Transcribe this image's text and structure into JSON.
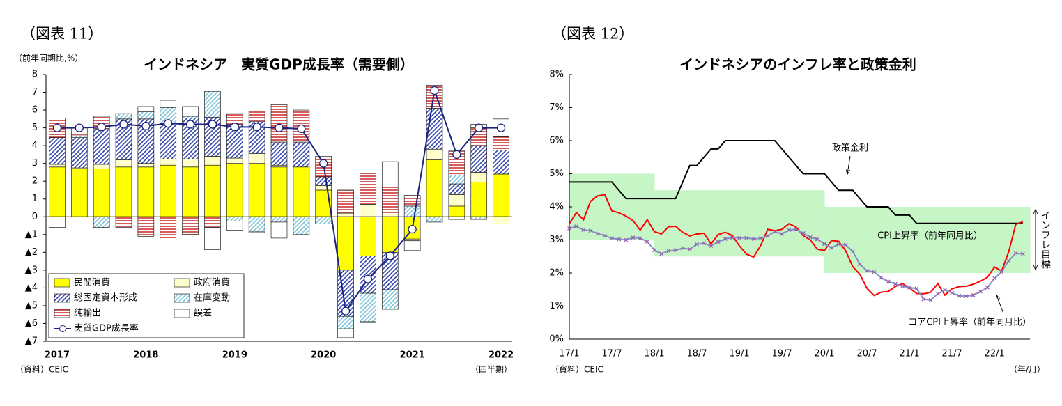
{
  "chart_data": [
    {
      "type": "bar",
      "stacked": true,
      "figure_label": "（図表 11）",
      "title": "インドネシア　実質GDP成長率（需要側）",
      "y_label": "（前年同期比,%）",
      "x_label": "（四半期）",
      "source": "（資料）CEIC",
      "grid": false,
      "categories": [
        "2017",
        null,
        null,
        null,
        "2018",
        null,
        null,
        null,
        "2019",
        null,
        null,
        null,
        "2020",
        null,
        null,
        null,
        "2021",
        null,
        null,
        null,
        "2022"
      ],
      "ylim": [
        -7,
        8
      ],
      "yticks": [
        8,
        7,
        6,
        5,
        4,
        3,
        2,
        1,
        0,
        {
          "value": -1,
          "label": "▲1"
        },
        {
          "value": -2,
          "label": "▲2"
        },
        {
          "value": -3,
          "label": "▲3"
        },
        {
          "value": -4,
          "label": "▲4"
        },
        {
          "value": -5,
          "label": "▲5"
        },
        {
          "value": -6,
          "label": "▲6"
        },
        {
          "value": -7,
          "label": "▲7"
        }
      ],
      "series": [
        {
          "name": "民間消費",
          "color": "#ffff00",
          "values": [
            2.8,
            2.7,
            2.7,
            2.8,
            2.8,
            2.9,
            2.8,
            2.9,
            3.0,
            3.0,
            2.8,
            2.8,
            1.5,
            -3.0,
            -2.2,
            -2.0,
            -1.25,
            3.2,
            0.6,
            1.95,
            2.4
          ]
        },
        {
          "name": "政府消費",
          "color": "#ffffcc",
          "values": [
            0.15,
            0.05,
            0.25,
            0.4,
            0.2,
            0.35,
            0.45,
            0.5,
            0.3,
            0.55,
            0.1,
            0.0,
            0.25,
            0.2,
            0.7,
            0.15,
            -0.1,
            0.6,
            0.65,
            0.55,
            -0.4
          ]
        },
        {
          "name": "総固定資本形成",
          "color": "#3344aa",
          "pattern": "diagonal",
          "values": [
            1.5,
            1.7,
            2.0,
            2.3,
            2.5,
            2.0,
            2.3,
            2.2,
            1.9,
            1.8,
            1.3,
            1.4,
            0.5,
            -2.6,
            -2.1,
            -2.1,
            0.0,
            2.3,
            0.6,
            1.5,
            1.35
          ]
        },
        {
          "name": "在庫変動",
          "color": "#7cc4dc",
          "pattern": "diagonal",
          "values": [
            0.0,
            0.1,
            -0.6,
            0.3,
            0.4,
            0.9,
            0.1,
            1.45,
            -0.25,
            -0.85,
            -0.3,
            -1.0,
            -0.4,
            -0.7,
            -1.6,
            -1.1,
            0.6,
            -0.3,
            0.5,
            -0.15,
            0.0
          ]
        },
        {
          "name": "純輸出",
          "color": "#cc3333",
          "pattern": "horizontal",
          "values": [
            1.1,
            0.1,
            0.7,
            -0.6,
            -1.1,
            -1.3,
            -1.0,
            -0.6,
            0.6,
            0.6,
            2.1,
            1.8,
            1.0,
            1.3,
            1.75,
            1.65,
            0.6,
            1.3,
            1.35,
            1.0,
            0.75
          ]
        },
        {
          "name": "誤差",
          "color": "#ffffff",
          "values": [
            -0.6,
            0.35,
            0.0,
            0.0,
            0.3,
            0.4,
            0.55,
            -1.25,
            -0.5,
            -0.05,
            -0.9,
            0.0,
            0.15,
            -0.5,
            -0.05,
            1.3,
            -0.55,
            0.0,
            -0.15,
            0.2,
            1.0
          ]
        },
        {
          "name": "実質GDP成長率",
          "type": "line",
          "color": "#1a237e",
          "values": [
            5.0,
            5.0,
            5.05,
            5.2,
            5.1,
            5.25,
            5.2,
            5.2,
            5.05,
            5.05,
            5.0,
            4.95,
            3.0,
            -5.3,
            -3.5,
            -2.2,
            -0.7,
            7.1,
            3.5,
            5.0,
            5.0
          ]
        }
      ]
    },
    {
      "type": "line",
      "figure_label": "（図表 12）",
      "title": "インドネシアのインフレ率と政策金利",
      "x_label": "（年/月）",
      "source": "（資料）CEIC",
      "grid": false,
      "categories": [
        "17/1",
        null,
        null,
        null,
        null,
        null,
        "17/7",
        null,
        null,
        null,
        null,
        null,
        "18/1",
        null,
        null,
        null,
        null,
        null,
        "18/7",
        null,
        null,
        null,
        null,
        null,
        "19/1",
        null,
        null,
        null,
        null,
        null,
        "19/7",
        null,
        null,
        null,
        null,
        null,
        "20/1",
        null,
        null,
        null,
        null,
        null,
        "20/7",
        null,
        null,
        null,
        null,
        null,
        "21/1",
        null,
        null,
        null,
        null,
        null,
        "21/7",
        null,
        null,
        null,
        null,
        null,
        "22/1",
        null,
        null,
        null,
        null
      ],
      "ylim": [
        0,
        8
      ],
      "yticks": [
        {
          "value": 0,
          "label": "0%"
        },
        {
          "value": 1,
          "label": "1%"
        },
        {
          "value": 2,
          "label": "2%"
        },
        {
          "value": 3,
          "label": "3%"
        },
        {
          "value": 4,
          "label": "4%"
        },
        {
          "value": 5,
          "label": "5%"
        },
        {
          "value": 6,
          "label": "6%"
        },
        {
          "value": 7,
          "label": "7%"
        },
        {
          "value": 8,
          "label": "8%"
        }
      ],
      "target_band": {
        "name": "インフレ目標",
        "color": "#c6f5c6",
        "upper": [
          5,
          5,
          5,
          5,
          5,
          5,
          5,
          5,
          5,
          5,
          5,
          5,
          4.5,
          4.5,
          4.5,
          4.5,
          4.5,
          4.5,
          4.5,
          4.5,
          4.5,
          4.5,
          4.5,
          4.5,
          4.5,
          4.5,
          4.5,
          4.5,
          4.5,
          4.5,
          4.5,
          4.5,
          4.5,
          4.5,
          4.5,
          4.5,
          4,
          4,
          4,
          4,
          4,
          4,
          4,
          4,
          4,
          4,
          4,
          4,
          4,
          4,
          4,
          4,
          4,
          4,
          4,
          4,
          4,
          4,
          4,
          4,
          4,
          4,
          4,
          4,
          4
        ],
        "lower": [
          3,
          3,
          3,
          3,
          3,
          3,
          3,
          3,
          3,
          3,
          3,
          3,
          2.5,
          2.5,
          2.5,
          2.5,
          2.5,
          2.5,
          2.5,
          2.5,
          2.5,
          2.5,
          2.5,
          2.5,
          2.5,
          2.5,
          2.5,
          2.5,
          2.5,
          2.5,
          2.5,
          2.5,
          2.5,
          2.5,
          2.5,
          2.5,
          2,
          2,
          2,
          2,
          2,
          2,
          2,
          2,
          2,
          2,
          2,
          2,
          2,
          2,
          2,
          2,
          2,
          2,
          2,
          2,
          2,
          2,
          2,
          2,
          2,
          2,
          2,
          2,
          2
        ]
      },
      "series": [
        {
          "name": "政策金利",
          "color": "#000000",
          "values": [
            4.75,
            4.75,
            4.75,
            4.75,
            4.75,
            4.75,
            4.75,
            4.5,
            4.25,
            4.25,
            4.25,
            4.25,
            4.25,
            4.25,
            4.25,
            4.25,
            4.75,
            5.25,
            5.25,
            5.5,
            5.75,
            5.75,
            6.0,
            6.0,
            6.0,
            6.0,
            6.0,
            6.0,
            6.0,
            6.0,
            5.75,
            5.5,
            5.25,
            5.0,
            5.0,
            5.0,
            5.0,
            4.75,
            4.5,
            4.5,
            4.5,
            4.25,
            4.0,
            4.0,
            4.0,
            4.0,
            3.75,
            3.75,
            3.75,
            3.5,
            3.5,
            3.5,
            3.5,
            3.5,
            3.5,
            3.5,
            3.5,
            3.5,
            3.5,
            3.5,
            3.5,
            3.5,
            3.5,
            3.5,
            3.5
          ]
        },
        {
          "name": "CPI上昇率（前年同月比）",
          "color": "#ff0000",
          "values": [
            3.49,
            3.83,
            3.61,
            4.17,
            4.33,
            4.37,
            3.88,
            3.82,
            3.72,
            3.58,
            3.3,
            3.61,
            3.25,
            3.18,
            3.4,
            3.41,
            3.23,
            3.12,
            3.18,
            3.2,
            2.88,
            3.16,
            3.23,
            3.13,
            2.82,
            2.57,
            2.48,
            2.83,
            3.32,
            3.28,
            3.32,
            3.49,
            3.39,
            3.13,
            3.0,
            2.72,
            2.68,
            2.98,
            2.96,
            2.67,
            2.19,
            1.96,
            1.54,
            1.32,
            1.42,
            1.44,
            1.59,
            1.68,
            1.55,
            1.38,
            1.37,
            1.42,
            1.68,
            1.33,
            1.52,
            1.59,
            1.6,
            1.66,
            1.75,
            1.87,
            2.18,
            2.06,
            2.64,
            3.47,
            3.55
          ]
        },
        {
          "name": "コアCPI上昇率（前年同月比）",
          "color": "#8090c8",
          "marker": "x",
          "marker_color": "#9a5aa8",
          "values": [
            3.35,
            3.41,
            3.3,
            3.28,
            3.19,
            3.13,
            3.05,
            3.02,
            3.0,
            3.07,
            3.05,
            2.95,
            2.69,
            2.58,
            2.67,
            2.69,
            2.75,
            2.72,
            2.87,
            2.9,
            2.82,
            2.94,
            3.03,
            3.07,
            3.06,
            3.06,
            3.03,
            3.05,
            3.12,
            3.25,
            3.18,
            3.3,
            3.32,
            3.2,
            3.08,
            3.02,
            2.88,
            2.76,
            2.87,
            2.85,
            2.65,
            2.26,
            2.07,
            2.03,
            1.86,
            1.74,
            1.67,
            1.6,
            1.56,
            1.53,
            1.21,
            1.18,
            1.37,
            1.49,
            1.4,
            1.31,
            1.3,
            1.33,
            1.44,
            1.56,
            1.84,
            2.03,
            2.37,
            2.6,
            2.58
          ]
        }
      ]
    }
  ]
}
